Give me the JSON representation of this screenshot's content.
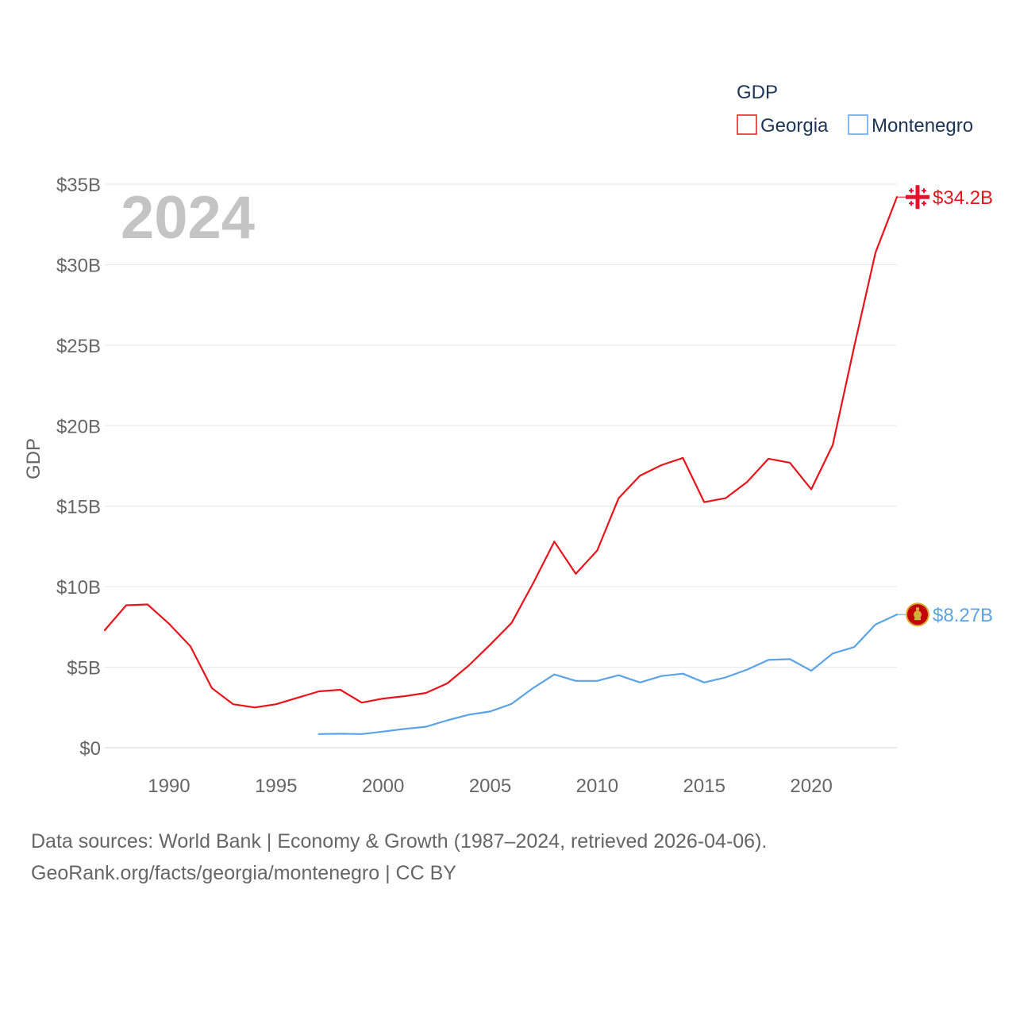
{
  "chart_data": {
    "type": "line",
    "year_label": "2024",
    "ylabel": "GDP",
    "ylim": [
      0,
      35
    ],
    "y_ticks": [
      {
        "value": 0,
        "label": "$0"
      },
      {
        "value": 5,
        "label": "$5B"
      },
      {
        "value": 10,
        "label": "$10B"
      },
      {
        "value": 15,
        "label": "$15B"
      },
      {
        "value": 20,
        "label": "$20B"
      },
      {
        "value": 25,
        "label": "$25B"
      },
      {
        "value": 30,
        "label": "$30B"
      },
      {
        "value": 35,
        "label": "$35B"
      }
    ],
    "xlim": [
      1987,
      2024
    ],
    "x_ticks": [
      {
        "value": 1990,
        "label": "1990"
      },
      {
        "value": 1995,
        "label": "1995"
      },
      {
        "value": 2000,
        "label": "2000"
      },
      {
        "value": 2005,
        "label": "2005"
      },
      {
        "value": 2010,
        "label": "2010"
      },
      {
        "value": 2015,
        "label": "2015"
      },
      {
        "value": 2020,
        "label": "2020"
      }
    ],
    "legend": {
      "title": "GDP",
      "position": "top-right"
    },
    "series": [
      {
        "name": "Georgia",
        "color": "#e8141c",
        "end_label": "$34.2B",
        "flag": "georgia-flag",
        "x": [
          1987,
          1988,
          1989,
          1990,
          1991,
          1992,
          1993,
          1994,
          1995,
          1996,
          1997,
          1998,
          1999,
          2000,
          2001,
          2002,
          2003,
          2004,
          2005,
          2006,
          2007,
          2008,
          2009,
          2010,
          2011,
          2012,
          2013,
          2014,
          2015,
          2016,
          2017,
          2018,
          2019,
          2020,
          2021,
          2022,
          2023,
          2024
        ],
        "values": [
          7.3,
          8.85,
          8.9,
          7.7,
          6.3,
          3.7,
          2.7,
          2.5,
          2.7,
          3.1,
          3.5,
          3.6,
          2.8,
          3.05,
          3.2,
          3.4,
          4.0,
          5.1,
          6.4,
          7.75,
          10.2,
          12.8,
          10.8,
          12.25,
          15.5,
          16.9,
          17.55,
          18.0,
          15.25,
          15.5,
          16.5,
          17.95,
          17.7,
          16.05,
          18.8,
          24.9,
          30.75,
          34.2
        ]
      },
      {
        "name": "Montenegro",
        "color": "#5ba3e6",
        "end_label": "$8.27B",
        "flag": "montenegro-flag",
        "x": [
          1997,
          1998,
          1999,
          2000,
          2001,
          2002,
          2003,
          2004,
          2005,
          2006,
          2007,
          2008,
          2009,
          2010,
          2011,
          2012,
          2013,
          2014,
          2015,
          2016,
          2017,
          2018,
          2019,
          2020,
          2021,
          2022,
          2023,
          2024
        ],
        "values": [
          0.85,
          0.87,
          0.85,
          1.0,
          1.17,
          1.3,
          1.7,
          2.05,
          2.25,
          2.72,
          3.7,
          4.55,
          4.15,
          4.15,
          4.5,
          4.05,
          4.45,
          4.6,
          4.05,
          4.37,
          4.85,
          5.45,
          5.5,
          4.78,
          5.85,
          6.25,
          7.65,
          8.27
        ]
      }
    ]
  },
  "footer": {
    "line1": "Data sources: World Bank | Economy & Growth (1987–2024, retrieved 2026-04-06).",
    "line2": "GeoRank.org/facts/georgia/montenegro | CC BY"
  }
}
